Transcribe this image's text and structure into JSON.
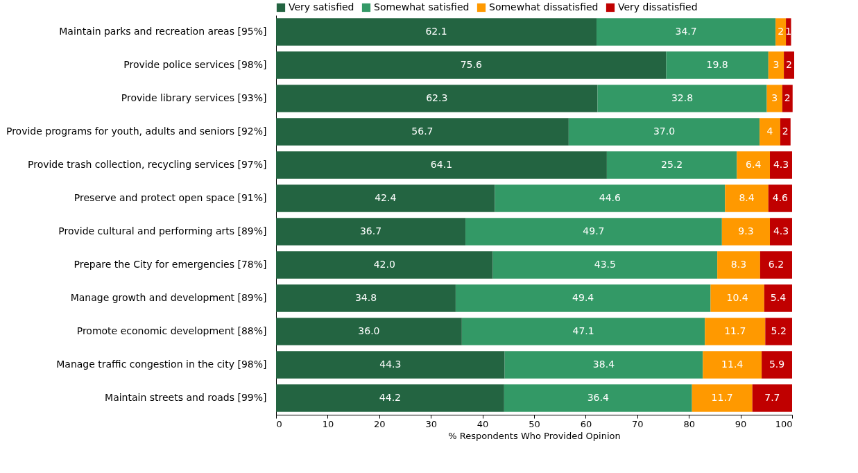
{
  "chart_data": {
    "type": "bar",
    "orientation": "horizontal",
    "stacked": true,
    "xlabel": "% Respondents Who Provided Opinion",
    "xlim": [
      0,
      100
    ],
    "xticks": [
      0,
      10,
      20,
      30,
      40,
      50,
      60,
      70,
      80,
      90,
      100
    ],
    "grid": false,
    "legend": "top",
    "categories": [
      "Maintain parks and recreation areas [95%]",
      "Provide police services [98%]",
      "Provide library services [93%]",
      "Provide programs for youth, adults and seniors [92%]",
      "Provide trash collection, recycling services [97%]",
      "Preserve and protect open space [91%]",
      "Provide cultural and performing arts [89%]",
      "Prepare the City for emergencies [78%]",
      "Manage growth and development [89%]",
      "Promote economic development [88%]",
      "Manage traffic congestion in the city [98%]",
      "Maintain streets and roads [99%]"
    ],
    "series": [
      {
        "name": "Very satisfied",
        "color": "#236441",
        "values": [
          62.1,
          75.6,
          62.3,
          56.7,
          64.1,
          42.4,
          36.7,
          42.0,
          34.8,
          36.0,
          44.3,
          44.2
        ],
        "value_labels": [
          "62.1",
          "75.6",
          "62.3",
          "56.7",
          "64.1",
          "42.4",
          "36.7",
          "42.0",
          "34.8",
          "36.0",
          "44.3",
          "44.2"
        ]
      },
      {
        "name": "Somewhat satisfied",
        "color": "#339966",
        "values": [
          34.7,
          19.8,
          32.8,
          37.0,
          25.2,
          44.6,
          49.7,
          43.5,
          49.4,
          47.1,
          38.4,
          36.4
        ],
        "value_labels": [
          "34.7",
          "19.8",
          "32.8",
          "37.0",
          "25.2",
          "44.6",
          "49.7",
          "43.5",
          "49.4",
          "47.1",
          "38.4",
          "36.4"
        ]
      },
      {
        "name": "Somewhat dissatisfied",
        "color": "#ff9900",
        "values": [
          2,
          3,
          3,
          4,
          6.4,
          8.4,
          9.3,
          8.3,
          10.4,
          11.7,
          11.4,
          11.7
        ],
        "value_labels": [
          "2",
          "3",
          "3",
          "4",
          "6.4",
          "8.4",
          "9.3",
          "8.3",
          "10.4",
          "11.7",
          "11.4",
          "11.7"
        ]
      },
      {
        "name": "Very dissatisfied",
        "color": "#c00000",
        "values": [
          1,
          2,
          2,
          2,
          4.3,
          4.6,
          4.3,
          6.2,
          5.4,
          5.2,
          5.9,
          7.7
        ],
        "value_labels": [
          "1",
          "2",
          "2",
          "2",
          "4.3",
          "4.6",
          "4.3",
          "6.2",
          "5.4",
          "5.2",
          "5.9",
          "7.7"
        ]
      }
    ]
  }
}
